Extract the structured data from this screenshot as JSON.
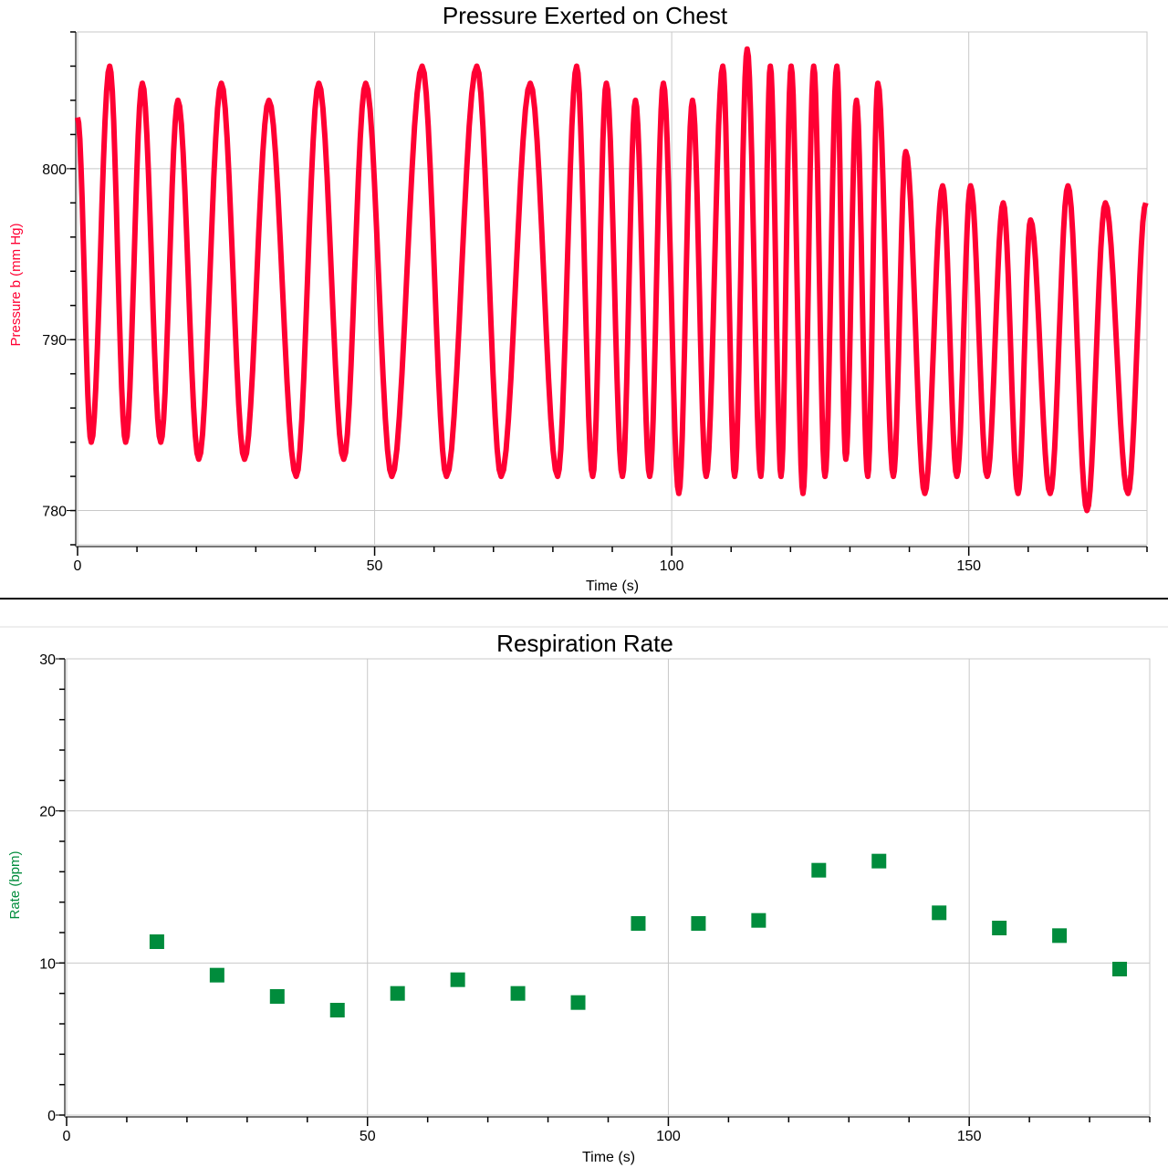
{
  "chart_data": [
    {
      "type": "line",
      "title": "Pressure Exerted on Chest",
      "xlabel": "Time (s)",
      "ylabel": "Pressure b (mm Hg)",
      "xlim": [
        0,
        180
      ],
      "ylim": [
        778,
        808
      ],
      "xticks": [
        0,
        50,
        100,
        150
      ],
      "yticks": [
        780,
        790,
        800
      ],
      "grid": true,
      "color": "#ff0033",
      "series": [
        {
          "x": [
            0,
            2.3,
            5.4,
            8.1,
            10.9,
            14.0,
            16.9,
            20.4,
            24.2,
            28.1,
            32.2,
            36.8,
            40.6,
            44.8,
            48.5,
            52.9,
            58.0,
            62.1,
            67.2,
            71.3,
            76.2,
            80.8,
            84.0,
            86.7,
            89.0,
            91.7,
            93.9,
            96.3,
            98.6,
            101.2,
            103.5,
            105.8,
            108.6,
            110.6,
            112.7,
            115.0,
            116.6,
            118.4,
            120.1,
            122.1,
            123.9,
            125.8,
            127.8,
            129.3,
            131.1,
            133.0,
            134.7,
            137.3,
            139.4,
            142.6,
            145.6,
            148.0,
            150.3,
            153.1,
            155.8,
            158.3,
            160.4,
            163.7,
            166.7,
            169.9,
            173.0,
            176.8,
            179.8
          ],
          "y": [
            803,
            784,
            806,
            784,
            805,
            784,
            804,
            783,
            805,
            783,
            804,
            782,
            805,
            783,
            805,
            782,
            806,
            782,
            806,
            782,
            805,
            782,
            806,
            782,
            805,
            782,
            804,
            782,
            805,
            781,
            804,
            782,
            806,
            782,
            807,
            782,
            806,
            782,
            806,
            781,
            806,
            782,
            806,
            783,
            804,
            782,
            805,
            782,
            801,
            781,
            799,
            782,
            799,
            782,
            798,
            781,
            797,
            781,
            799,
            780,
            798,
            781,
            798
          ]
        }
      ]
    },
    {
      "type": "scatter",
      "title": "Respiration Rate",
      "xlabel": "Time (s)",
      "ylabel": "Rate (bpm)",
      "xlim": [
        0,
        180
      ],
      "ylim": [
        0,
        30
      ],
      "xticks": [
        0,
        50,
        100,
        150
      ],
      "yticks": [
        0,
        10,
        20,
        30
      ],
      "grid": true,
      "color": "#008c3c",
      "series": [
        {
          "x": [
            15,
            25,
            35,
            45,
            55,
            65,
            75,
            85,
            95,
            105,
            115,
            125,
            135,
            145,
            155,
            165,
            175
          ],
          "y": [
            11.4,
            9.2,
            7.8,
            6.9,
            8.0,
            8.9,
            8.0,
            7.4,
            12.6,
            12.6,
            12.8,
            16.1,
            16.7,
            13.3,
            12.3,
            11.8,
            9.6
          ]
        }
      ]
    }
  ]
}
